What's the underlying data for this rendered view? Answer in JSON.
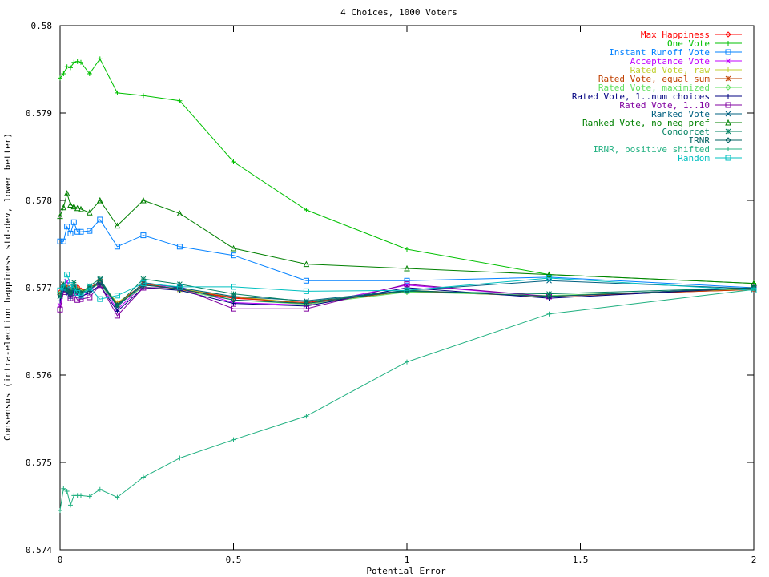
{
  "chart_data": {
    "type": "line",
    "title": "4 Choices, 1000 Voters",
    "xlabel": "Potential Error",
    "ylabel": "Consensus (intra-election happiness std-dev, lower better)",
    "xlim": [
      0,
      2
    ],
    "ylim": [
      0.574,
      0.58
    ],
    "xticks": [
      0,
      0.5,
      1,
      1.5,
      2
    ],
    "xtick_labels": [
      "0",
      "0.5",
      "1",
      "1.5",
      "2"
    ],
    "yticks": [
      0.574,
      0.575,
      0.576,
      0.577,
      0.578,
      0.579,
      0.58
    ],
    "ytick_labels": [
      "0.574",
      "0.575",
      "0.576",
      "0.577",
      "0.578",
      "0.579",
      "0.58"
    ],
    "legend_position": "top-right",
    "grid": false,
    "x": [
      0,
      0.01,
      0.02,
      0.03,
      0.04,
      0.05,
      0.06,
      0.085,
      0.115,
      0.165,
      0.24,
      0.345,
      0.5,
      0.71,
      1.0,
      1.41,
      2.0
    ],
    "series": [
      {
        "name": "Max Happiness",
        "color": "#ff0000",
        "marker": "diamond",
        "values": [
          0.57695,
          0.57703,
          0.577,
          0.57698,
          0.57702,
          0.577,
          0.57697,
          0.577,
          0.57707,
          0.57682,
          0.57704,
          0.57698,
          0.57688,
          0.57683,
          0.57697,
          0.5769,
          0.57698
        ]
      },
      {
        "name": "One Vote",
        "color": "#00c000",
        "marker": "plus",
        "values": [
          0.5794,
          0.57945,
          0.57953,
          0.57952,
          0.57958,
          0.57959,
          0.57958,
          0.57945,
          0.57962,
          0.57923,
          0.5792,
          0.57914,
          0.57844,
          0.57789,
          0.57744,
          0.57715,
          0.57705
        ]
      },
      {
        "name": "Instant Runoff Vote",
        "color": "#0080ff",
        "marker": "square",
        "values": [
          0.57753,
          0.57753,
          0.5777,
          0.57762,
          0.57775,
          0.57764,
          0.57764,
          0.57765,
          0.57778,
          0.57747,
          0.5776,
          0.57747,
          0.57737,
          0.57708,
          0.57708,
          0.57712,
          0.577
        ]
      },
      {
        "name": "Acceptance Vote",
        "color": "#c000ff",
        "marker": "x",
        "values": [
          0.5768,
          0.577,
          0.57707,
          0.57693,
          0.57699,
          0.57695,
          0.57688,
          0.57697,
          0.57706,
          0.57675,
          0.57703,
          0.57701,
          0.57683,
          0.5768,
          0.57703,
          0.5769,
          0.577
        ]
      },
      {
        "name": "Rated Vote, raw",
        "color": "#c0d030",
        "marker": "plus",
        "values": [
          0.57693,
          0.57703,
          0.57698,
          0.57696,
          0.57701,
          0.57698,
          0.57696,
          0.577,
          0.57706,
          0.57683,
          0.57703,
          0.57699,
          0.5769,
          0.57682,
          0.57697,
          0.5769,
          0.57699
        ]
      },
      {
        "name": "Rated Vote, equal sum",
        "color": "#c04000",
        "marker": "star",
        "values": [
          0.57694,
          0.57704,
          0.577,
          0.57697,
          0.57702,
          0.57699,
          0.57696,
          0.577,
          0.57707,
          0.57681,
          0.57705,
          0.57698,
          0.57689,
          0.57682,
          0.57696,
          0.5769,
          0.57698
        ]
      },
      {
        "name": "Rated Vote, maximized",
        "color": "#60e060",
        "marker": "diamond",
        "values": [
          0.57693,
          0.57702,
          0.57697,
          0.57695,
          0.577,
          0.57697,
          0.57695,
          0.57699,
          0.57704,
          0.5768,
          0.57701,
          0.57697,
          0.57686,
          0.57681,
          0.57695,
          0.57691,
          0.57699
        ]
      },
      {
        "name": "Rated Vote, 1..num choices",
        "color": "#000080",
        "marker": "plus",
        "values": [
          0.57685,
          0.57697,
          0.57694,
          0.57688,
          0.57697,
          0.57694,
          0.5769,
          0.57694,
          0.57703,
          0.57673,
          0.577,
          0.57697,
          0.57682,
          0.57679,
          0.577,
          0.57688,
          0.577
        ]
      },
      {
        "name": "Rated Vote, 1..10",
        "color": "#8000a0",
        "marker": "square",
        "values": [
          0.57675,
          0.57695,
          0.57697,
          0.57688,
          0.57694,
          0.57686,
          0.57687,
          0.57689,
          0.57703,
          0.57668,
          0.577,
          0.577,
          0.57676,
          0.57676,
          0.57704,
          0.5769,
          0.577
        ]
      },
      {
        "name": "Ranked Vote",
        "color": "#006080",
        "marker": "x",
        "values": [
          0.5769,
          0.577,
          0.57699,
          0.57693,
          0.57698,
          0.57695,
          0.57692,
          0.57697,
          0.57709,
          0.57678,
          0.57706,
          0.577,
          0.5769,
          0.57685,
          0.57697,
          0.57708,
          0.57699
        ]
      },
      {
        "name": "Ranked Vote, no neg pref",
        "color": "#008000",
        "marker": "triangle",
        "values": [
          0.57782,
          0.57792,
          0.57808,
          0.57795,
          0.57793,
          0.57791,
          0.5779,
          0.57786,
          0.578,
          0.57771,
          0.578,
          0.57785,
          0.57745,
          0.57727,
          0.57722,
          0.57715,
          0.57705
        ]
      },
      {
        "name": "Condorcet",
        "color": "#008060",
        "marker": "star",
        "values": [
          0.5769,
          0.57704,
          0.57698,
          0.57695,
          0.57706,
          0.57697,
          0.57694,
          0.57702,
          0.5771,
          0.5768,
          0.5771,
          0.57704,
          0.57693,
          0.57684,
          0.57696,
          0.57693,
          0.577
        ]
      },
      {
        "name": "IRNR",
        "color": "#006060",
        "marker": "diamond",
        "values": [
          0.57692,
          0.57701,
          0.57697,
          0.57694,
          0.577,
          0.57696,
          0.57694,
          0.57698,
          0.57706,
          0.5768,
          0.57703,
          0.57699,
          0.57686,
          0.57682,
          0.57697,
          0.5769,
          0.577
        ]
      },
      {
        "name": "IRNR, positive shifted",
        "color": "#20b080",
        "marker": "plus",
        "values": [
          0.57445,
          0.5747,
          0.57467,
          0.57451,
          0.57462,
          0.57462,
          0.57462,
          0.57461,
          0.57469,
          0.5746,
          0.57483,
          0.57505,
          0.57526,
          0.57553,
          0.57615,
          0.5767,
          0.57698
        ]
      },
      {
        "name": "Random",
        "color": "#00c0c0",
        "marker": "square",
        "values": [
          0.57697,
          0.577,
          0.57715,
          0.57703,
          0.57701,
          0.57694,
          0.57691,
          0.577,
          0.57687,
          0.57691,
          0.57705,
          0.57701,
          0.57701,
          0.57696,
          0.57697,
          0.57711,
          0.57697
        ]
      }
    ]
  }
}
